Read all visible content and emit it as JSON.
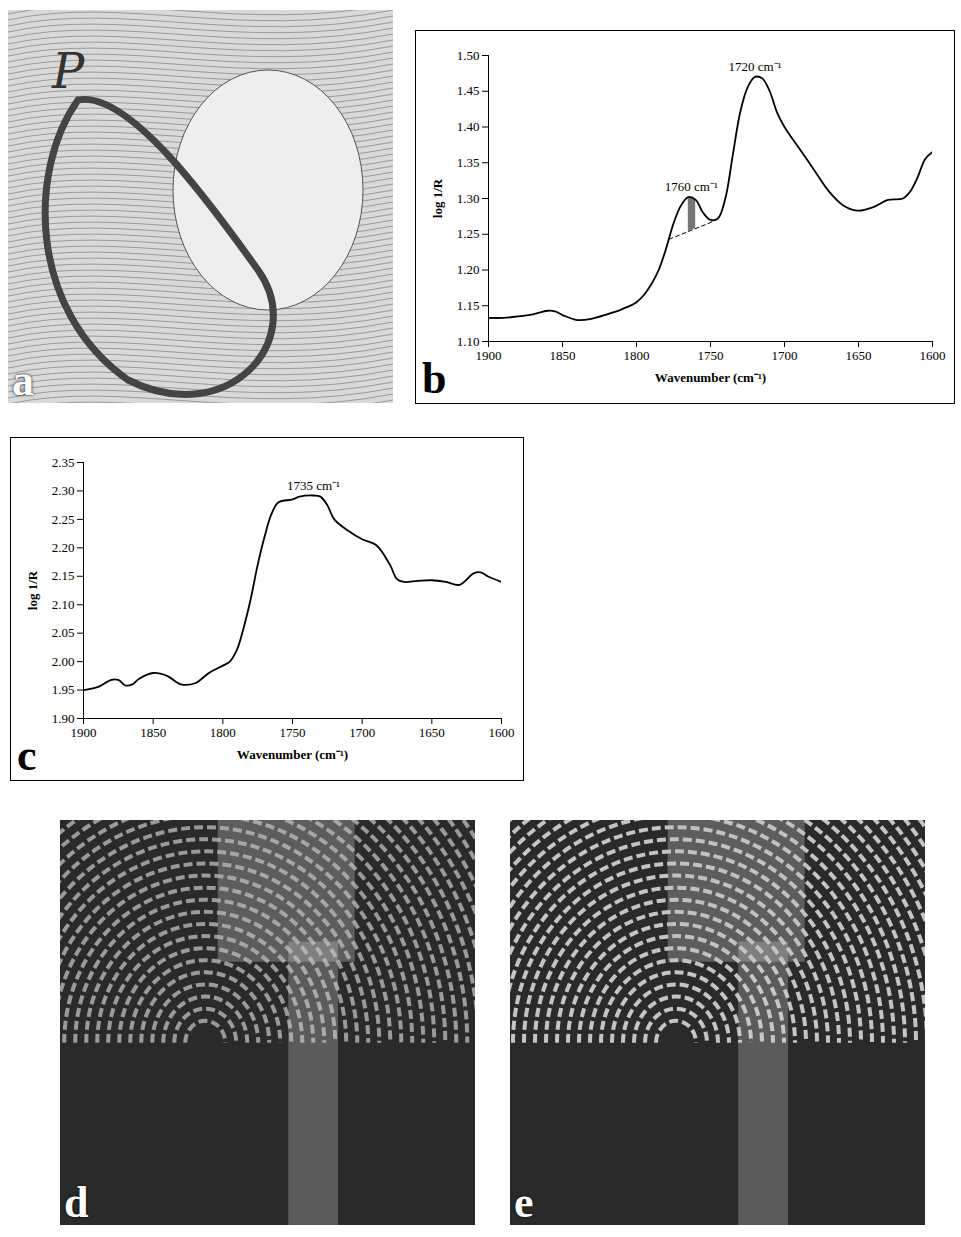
{
  "chart_data": [
    {
      "type": "image",
      "panel": "a",
      "texts": [
        "P"
      ]
    },
    {
      "type": "line",
      "panel": "b",
      "xlabel": "Wavenumber (cm⁻¹)",
      "ylabel": "log 1/R",
      "x": [
        1900,
        1890,
        1880,
        1870,
        1860,
        1855,
        1850,
        1840,
        1830,
        1820,
        1810,
        1800,
        1795,
        1790,
        1785,
        1780,
        1775,
        1770,
        1765,
        1760,
        1755,
        1750,
        1745,
        1740,
        1735,
        1730,
        1725,
        1720,
        1715,
        1710,
        1705,
        1700,
        1690,
        1680,
        1670,
        1660,
        1650,
        1640,
        1630,
        1620,
        1615,
        1610,
        1605,
        1600
      ],
      "values": [
        1.133,
        1.133,
        1.135,
        1.138,
        1.143,
        1.142,
        1.137,
        1.13,
        1.132,
        1.138,
        1.145,
        1.155,
        1.165,
        1.18,
        1.2,
        1.23,
        1.265,
        1.29,
        1.302,
        1.298,
        1.28,
        1.27,
        1.272,
        1.3,
        1.36,
        1.42,
        1.455,
        1.47,
        1.468,
        1.45,
        1.42,
        1.4,
        1.37,
        1.34,
        1.31,
        1.29,
        1.283,
        1.288,
        1.298,
        1.3,
        1.31,
        1.33,
        1.355,
        1.365
      ],
      "color": "#000000",
      "xlim": [
        1900,
        1600
      ],
      "xticks": [
        1900,
        1850,
        1800,
        1750,
        1700,
        1650,
        1600
      ],
      "ylim": [
        1.1,
        1.5
      ],
      "yticks": [
        {
          "value": 1.1,
          "label": "1.10"
        },
        1.15,
        {
          "value": 1.2,
          "label": "1.20"
        },
        1.25,
        {
          "value": 1.3,
          "label": "1.30"
        },
        1.35,
        {
          "value": 1.4,
          "label": "1.40"
        },
        1.45,
        {
          "value": 1.5,
          "label": "1.50"
        }
      ],
      "baseline": {
        "x": [
          1778,
          1748
        ],
        "y": [
          1.243,
          1.268
        ]
      },
      "shaded": [
        1765,
        1760
      ],
      "annotations": [
        {
          "x": 1763,
          "y": 1.302,
          "text": "1760 cm⁻¹"
        },
        {
          "x": 1720,
          "y": 1.47,
          "text": "1720 cm⁻¹"
        }
      ]
    },
    {
      "type": "line",
      "panel": "c",
      "xlabel": "Wavenumber (cm⁻¹)",
      "ylabel": "log 1/R",
      "x": [
        1900,
        1890,
        1880,
        1875,
        1870,
        1865,
        1860,
        1850,
        1840,
        1830,
        1820,
        1810,
        1800,
        1795,
        1790,
        1785,
        1780,
        1775,
        1770,
        1765,
        1760,
        1750,
        1745,
        1735,
        1730,
        1725,
        1720,
        1710,
        1700,
        1690,
        1680,
        1675,
        1670,
        1660,
        1650,
        1640,
        1630,
        1620,
        1615,
        1610,
        1600
      ],
      "values": [
        1.95,
        1.955,
        1.968,
        1.968,
        1.958,
        1.96,
        1.97,
        1.98,
        1.975,
        1.96,
        1.962,
        1.98,
        1.993,
        2.0,
        2.02,
        2.06,
        2.11,
        2.17,
        2.22,
        2.26,
        2.28,
        2.285,
        2.29,
        2.292,
        2.29,
        2.275,
        2.25,
        2.23,
        2.215,
        2.205,
        2.17,
        2.145,
        2.14,
        2.142,
        2.143,
        2.14,
        2.135,
        2.155,
        2.157,
        2.15,
        2.14
      ],
      "color": "#000000",
      "xlim": [
        1900,
        1600
      ],
      "xticks": [
        1900,
        1850,
        1800,
        1750,
        1700,
        1650,
        1600
      ],
      "ylim": [
        1.9,
        2.35
      ],
      "yticks": [
        {
          "value": 1.9,
          "label": "1.90"
        },
        1.95,
        {
          "value": 2.0,
          "label": "2.00"
        },
        2.05,
        {
          "value": 2.1,
          "label": "2.10"
        },
        2.15,
        {
          "value": 2.2,
          "label": "2.20"
        },
        2.25,
        {
          "value": 2.3,
          "label": "2.30"
        },
        2.35
      ],
      "annotations": [
        {
          "x": 1735,
          "y": 2.292,
          "text": "1735 cm⁻¹"
        }
      ]
    },
    {
      "type": "image",
      "panel": "d"
    },
    {
      "type": "image",
      "panel": "e"
    }
  ]
}
